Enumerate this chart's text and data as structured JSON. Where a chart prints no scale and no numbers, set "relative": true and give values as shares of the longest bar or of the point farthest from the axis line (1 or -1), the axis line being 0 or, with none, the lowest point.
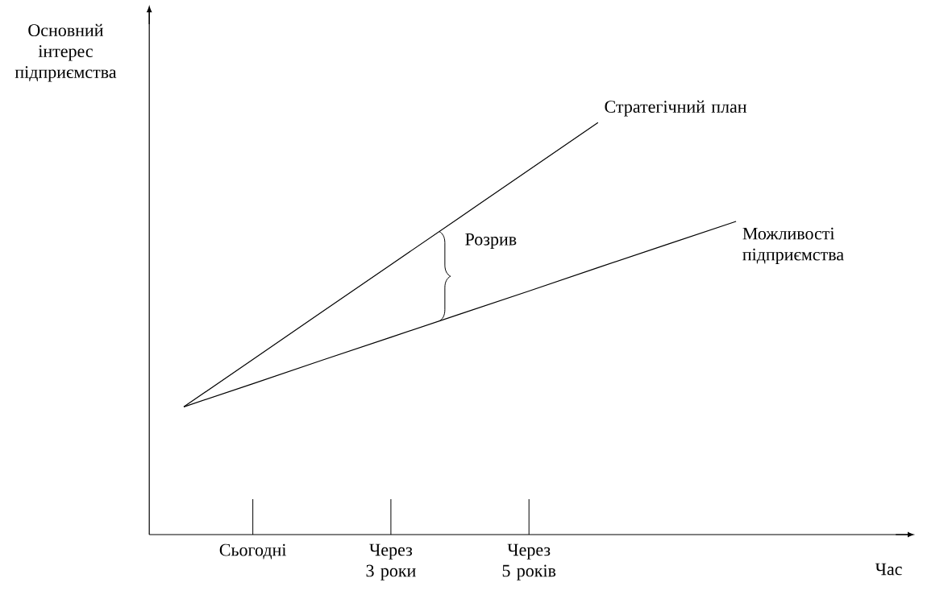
{
  "chart_data": {
    "type": "line",
    "relative": true,
    "xlabel": "Час",
    "ylabel": "Основний інтерес підприємства",
    "categories": [
      null,
      "Сьогодні",
      null,
      "Через 3 роки",
      null,
      "Через 5 років",
      null,
      null,
      null,
      null,
      null
    ],
    "tick_labels": "x",
    "series": [
      {
        "name": "Стратегічний план",
        "color": "#000000",
        "values": [
          0.31,
          0.425,
          0.54,
          0.655,
          0.77,
          0.885,
          1.0,
          null,
          null,
          null,
          null
        ]
      },
      {
        "name": "Можливості підприємства",
        "color": "#000000",
        "values": [
          0.31,
          0.366,
          0.423,
          0.479,
          0.535,
          0.591,
          0.648,
          0.704,
          0.76,
          null,
          null
        ]
      }
    ],
    "annotations": [
      "Розрив"
    ]
  }
}
